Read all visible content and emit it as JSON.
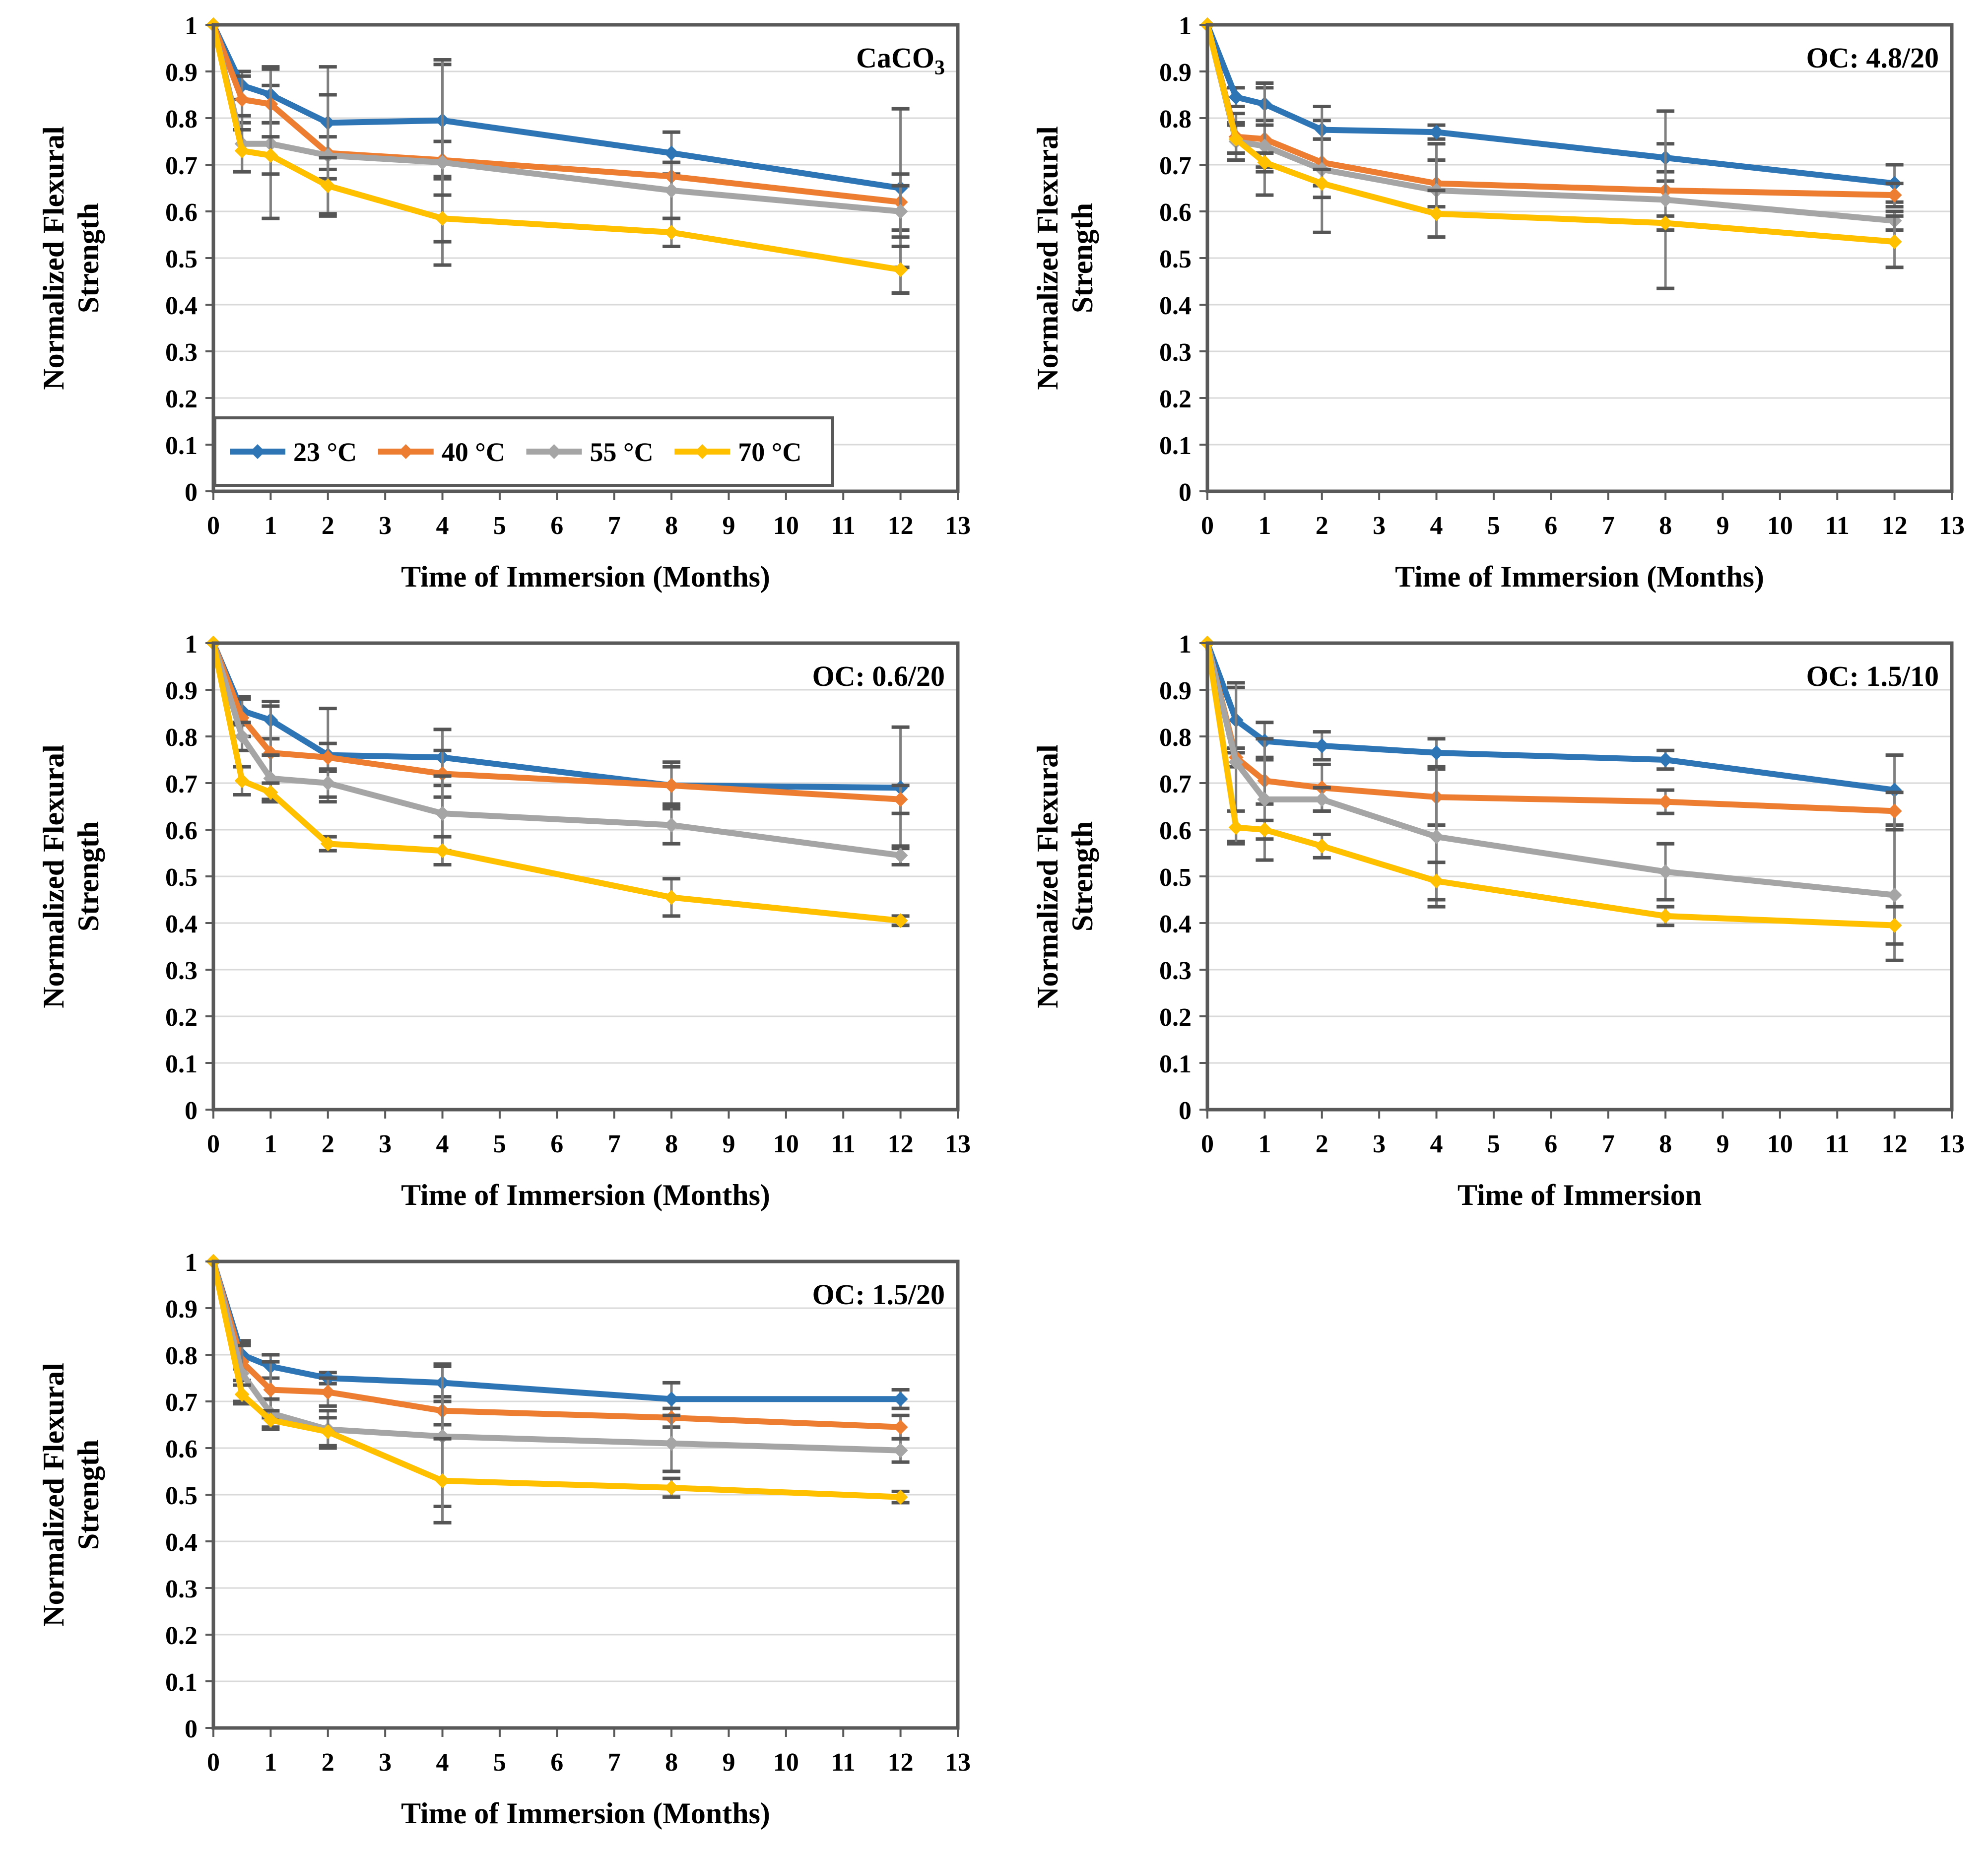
{
  "style": {
    "background": "#ffffff",
    "grid_color": "#d9d9d9",
    "border_color": "#595959",
    "error_color": "#7f7f7f",
    "error_cap_color": "#555555",
    "text_color": "#000000",
    "series_palette": [
      "#2e75b6",
      "#ed7d31",
      "#a5a5a5",
      "#ffc000"
    ]
  },
  "legend": {
    "entries": [
      "23 °C",
      "40 °C",
      "55 °C",
      "70 °C"
    ]
  },
  "chart_data": [
    {
      "type": "line",
      "title": "CaCO₃",
      "xlabel": "Time of Immersion (Months)",
      "ylabel": "Normalized Flexural Strength",
      "ylabel_lines": [
        "Normalized Flexural",
        "Strength"
      ],
      "x": [
        0,
        0.5,
        1,
        2,
        4,
        8,
        12
      ],
      "xlim": [
        0,
        13
      ],
      "ylim": [
        0,
        1
      ],
      "ytick_step": 0.1,
      "grid": true,
      "legend": {
        "show": true,
        "position": "inside-bottom-left"
      },
      "series": [
        {
          "name": "23 °C",
          "color": "#2e75b6",
          "values": [
            1,
            0.87,
            0.85,
            0.79,
            0.795,
            0.725,
            0.65
          ],
          "err": [
            0,
            0.03,
            0.06,
            0.12,
            0.12,
            0.045,
            0.17
          ]
        },
        {
          "name": "40 °C",
          "color": "#ed7d31",
          "values": [
            1,
            0.84,
            0.83,
            0.725,
            0.71,
            0.675,
            0.62
          ],
          "err": [
            0,
            0.05,
            0.04,
            0.035,
            0.04,
            0.03,
            0.06
          ]
        },
        {
          "name": "55 °C",
          "color": "#a5a5a5",
          "values": [
            1,
            0.745,
            0.745,
            0.72,
            0.705,
            0.645,
            0.6
          ],
          "err": [
            0,
            0.06,
            0.16,
            0.13,
            0.22,
            0.06,
            0.055
          ]
        },
        {
          "name": "70 °C",
          "color": "#ffc000",
          "values": [
            1,
            0.73,
            0.72,
            0.655,
            0.585,
            0.555,
            0.475
          ],
          "err": [
            0,
            0.045,
            0.04,
            0.06,
            0.05,
            0.03,
            0.05
          ]
        }
      ]
    },
    {
      "type": "line",
      "title": "OC: 4.8/20",
      "xlabel": "Time of Immersion (Months)",
      "ylabel": "Normalized Flexural Strength",
      "ylabel_lines": [
        "Normalized Flexural",
        "Strength"
      ],
      "x": [
        0,
        0.5,
        1,
        2,
        4,
        8,
        12
      ],
      "xlim": [
        0,
        13
      ],
      "ylim": [
        0,
        1
      ],
      "ytick_step": 0.1,
      "grid": true,
      "legend": {
        "show": false
      },
      "series": [
        {
          "name": "23 °C",
          "color": "#2e75b6",
          "values": [
            1,
            0.845,
            0.83,
            0.775,
            0.77,
            0.715,
            0.66
          ],
          "err": [
            0,
            0.02,
            0.035,
            0.02,
            0.015,
            0.03,
            0.04
          ]
        },
        {
          "name": "40 °C",
          "color": "#ed7d31",
          "values": [
            1,
            0.76,
            0.755,
            0.705,
            0.66,
            0.645,
            0.635
          ],
          "err": [
            0,
            0.05,
            0.12,
            0.05,
            0.05,
            0.02,
            0.025
          ]
        },
        {
          "name": "55 °C",
          "color": "#a5a5a5",
          "values": [
            1,
            0.75,
            0.74,
            0.69,
            0.645,
            0.625,
            0.58
          ],
          "err": [
            0,
            0.04,
            0.045,
            0.135,
            0.1,
            0.19,
            0.02
          ]
        },
        {
          "name": "70 °C",
          "color": "#ffc000",
          "values": [
            1,
            0.755,
            0.705,
            0.66,
            0.595,
            0.575,
            0.535
          ],
          "err": [
            0,
            0.03,
            0.02,
            0.03,
            0.05,
            0.015,
            0.055
          ]
        }
      ]
    },
    {
      "type": "line",
      "title": "OC: 0.6/20",
      "xlabel": "Time of Immersion (Months)",
      "ylabel": "Normalized Flexural Strength",
      "ylabel_lines": [
        "Normalized Flexural",
        "Strength"
      ],
      "x": [
        0,
        0.5,
        1,
        2,
        4,
        8,
        12
      ],
      "xlim": [
        0,
        13
      ],
      "ylim": [
        0,
        1
      ],
      "ytick_step": 0.1,
      "grid": true,
      "legend": {
        "show": false
      },
      "series": [
        {
          "name": "23 °C",
          "color": "#2e75b6",
          "values": [
            1,
            0.855,
            0.835,
            0.76,
            0.755,
            0.695,
            0.69
          ],
          "err": [
            0,
            0.03,
            0.04,
            0.1,
            0.06,
            0.05,
            0.13
          ]
        },
        {
          "name": "40 °C",
          "color": "#ed7d31",
          "values": [
            1,
            0.84,
            0.765,
            0.755,
            0.72,
            0.695,
            0.665
          ],
          "err": [
            0,
            0.04,
            0.1,
            0.03,
            0.05,
            0.04,
            0.03
          ]
        },
        {
          "name": "55 °C",
          "color": "#a5a5a5",
          "values": [
            1,
            0.8,
            0.71,
            0.7,
            0.635,
            0.61,
            0.545
          ],
          "err": [
            0,
            0.03,
            0.05,
            0.03,
            0.08,
            0.04,
            0.02
          ]
        },
        {
          "name": "70 °C",
          "color": "#ffc000",
          "values": [
            1,
            0.705,
            0.68,
            0.57,
            0.555,
            0.455,
            0.405
          ],
          "err": [
            0,
            0.03,
            0.02,
            0.015,
            0.03,
            0.04,
            0.01
          ]
        }
      ]
    },
    {
      "type": "line",
      "title": "OC: 1.5/10",
      "xlabel": "Time of Immersion",
      "ylabel": "Normalized Flexural Strength",
      "ylabel_lines": [
        "Normalized Flexural",
        "Strength"
      ],
      "x": [
        0,
        0.5,
        1,
        2,
        4,
        8,
        12
      ],
      "xlim": [
        0,
        13
      ],
      "ylim": [
        0,
        1
      ],
      "ytick_step": 0.1,
      "grid": true,
      "legend": {
        "show": false
      },
      "series": [
        {
          "name": "23 °C",
          "color": "#2e75b6",
          "values": [
            1,
            0.835,
            0.79,
            0.78,
            0.765,
            0.75,
            0.685
          ],
          "err": [
            0,
            0.07,
            0.04,
            0.03,
            0.03,
            0.02,
            0.075
          ]
        },
        {
          "name": "40 °C",
          "color": "#ed7d31",
          "values": [
            1,
            0.755,
            0.705,
            0.69,
            0.67,
            0.66,
            0.64
          ],
          "err": [
            0,
            0.02,
            0.05,
            0.05,
            0.06,
            0.025,
            0.04
          ]
        },
        {
          "name": "55 °C",
          "color": "#a5a5a5",
          "values": [
            1,
            0.745,
            0.665,
            0.665,
            0.585,
            0.51,
            0.46
          ],
          "err": [
            0,
            0.17,
            0.13,
            0.025,
            0.15,
            0.06,
            0.14
          ]
        },
        {
          "name": "70 °C",
          "color": "#ffc000",
          "values": [
            1,
            0.605,
            0.6,
            0.565,
            0.49,
            0.415,
            0.395
          ],
          "err": [
            0,
            0.035,
            0.02,
            0.025,
            0.04,
            0.02,
            0.04
          ]
        }
      ]
    },
    {
      "type": "line",
      "title": "OC: 1.5/20",
      "xlabel": "Time of Immersion (Months)",
      "ylabel": "Normalized Flexural Strength",
      "ylabel_lines": [
        "Normalized Flexural",
        "Strength"
      ],
      "x": [
        0,
        0.5,
        1,
        2,
        4,
        8,
        12
      ],
      "xlim": [
        0,
        13
      ],
      "ylim": [
        0,
        1
      ],
      "ytick_step": 0.1,
      "grid": true,
      "legend": {
        "show": false
      },
      "series": [
        {
          "name": "23 °C",
          "color": "#2e75b6",
          "values": [
            1,
            0.8,
            0.775,
            0.75,
            0.74,
            0.705,
            0.705
          ],
          "err": [
            0,
            0.03,
            0.025,
            0.012,
            0.04,
            0.035,
            0.02
          ]
        },
        {
          "name": "40 °C",
          "color": "#ed7d31",
          "values": [
            1,
            0.785,
            0.725,
            0.72,
            0.68,
            0.665,
            0.645
          ],
          "err": [
            0,
            0.04,
            0.06,
            0.03,
            0.03,
            0.02,
            0.025
          ]
        },
        {
          "name": "55 °C",
          "color": "#a5a5a5",
          "values": [
            1,
            0.76,
            0.675,
            0.64,
            0.625,
            0.61,
            0.595
          ],
          "err": [
            0,
            0.06,
            0.03,
            0.04,
            0.15,
            0.06,
            0.025
          ]
        },
        {
          "name": "70 °C",
          "color": "#ffc000",
          "values": [
            1,
            0.715,
            0.66,
            0.635,
            0.53,
            0.515,
            0.495
          ],
          "err": [
            0,
            0.02,
            0.02,
            0.03,
            0.09,
            0.02,
            0.012
          ]
        }
      ]
    }
  ]
}
